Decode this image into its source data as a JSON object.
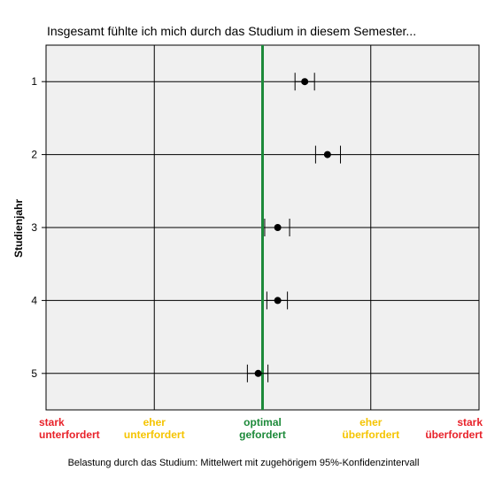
{
  "chart_data": {
    "type": "scatter",
    "title": "Insgesamt fühlte ich mich durch das Studium in diesem Semester...",
    "xlabel": "Belastung durch das Studium: Mittelwert mit zugehörigem 95%-Konfidenzintervall",
    "ylabel": "Studienjahr",
    "xlim": [
      1,
      5
    ],
    "ylim": [
      0.5,
      5.5
    ],
    "y_inverted": true,
    "grid": true,
    "x_ticks": [
      {
        "value": 1,
        "line1": "stark",
        "line2": "unterfordert",
        "color": "#e8222a"
      },
      {
        "value": 2,
        "line1": "eher",
        "line2": "unterfordert",
        "color": "#f5c400"
      },
      {
        "value": 3,
        "line1": "optimal",
        "line2": "gefordert",
        "color": "#1d8a3a"
      },
      {
        "value": 4,
        "line1": "eher",
        "line2": "überfordert",
        "color": "#f5c400"
      },
      {
        "value": 5,
        "line1": "stark",
        "line2": "überfordert",
        "color": "#e8222a"
      }
    ],
    "reference_line": {
      "x": 3,
      "color": "#1d8a3a"
    },
    "points": [
      {
        "y": 1,
        "label": "1",
        "mean": 3.39,
        "ci_low": 3.3,
        "ci_high": 3.48
      },
      {
        "y": 2,
        "label": "2",
        "mean": 3.6,
        "ci_low": 3.49,
        "ci_high": 3.72
      },
      {
        "y": 3,
        "label": "3",
        "mean": 3.14,
        "ci_low": 3.02,
        "ci_high": 3.25
      },
      {
        "y": 4,
        "label": "4",
        "mean": 3.14,
        "ci_low": 3.04,
        "ci_high": 3.23
      },
      {
        "y": 5,
        "label": "5",
        "mean": 2.96,
        "ci_low": 2.86,
        "ci_high": 3.05
      }
    ]
  }
}
